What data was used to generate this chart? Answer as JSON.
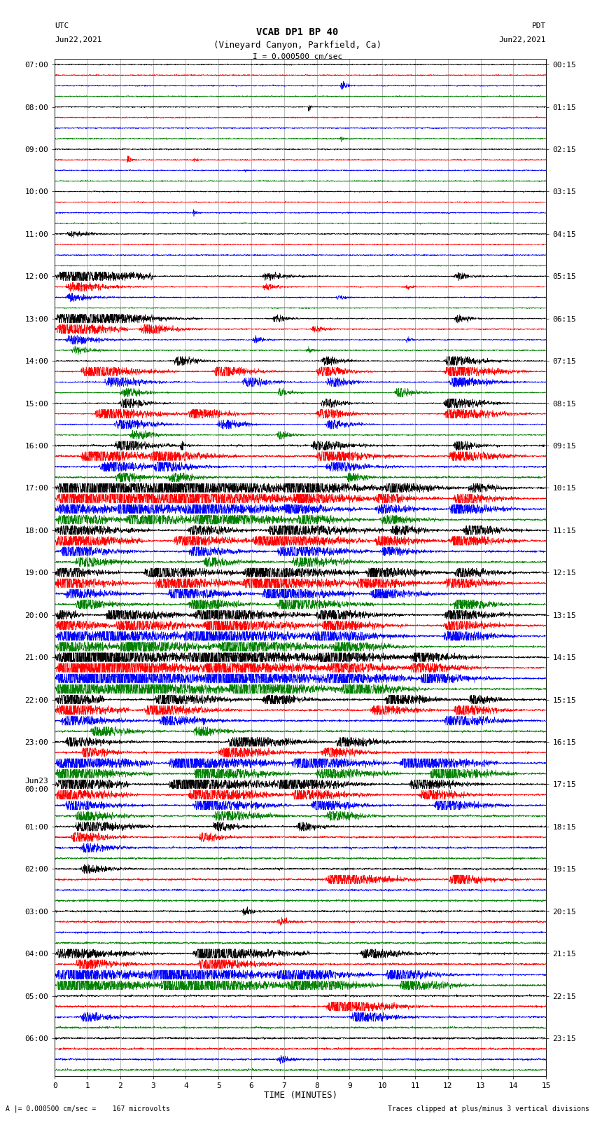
{
  "title_line1": "VCAB DP1 BP 40",
  "title_line2": "(Vineyard Canyon, Parkfield, Ca)",
  "scale_label": "I = 0.000500 cm/sec",
  "left_header": "UTC",
  "left_date": "Jun22,2021",
  "right_header": "PDT",
  "right_date": "Jun22,2021",
  "xlabel": "TIME (MINUTES)",
  "bottom_left": "A |= 0.000500 cm/sec =    167 microvolts",
  "bottom_right": "Traces clipped at plus/minus 3 vertical divisions",
  "xmin": 0,
  "xmax": 15,
  "xticks": [
    0,
    1,
    2,
    3,
    4,
    5,
    6,
    7,
    8,
    9,
    10,
    11,
    12,
    13,
    14,
    15
  ],
  "trace_colors_cycle": [
    "black",
    "red",
    "blue",
    "green"
  ],
  "bg_color": "#ffffff",
  "n_rows": 96,
  "left_times": [
    "07:00",
    "",
    "",
    "",
    "08:00",
    "",
    "",
    "",
    "09:00",
    "",
    "",
    "",
    "10:00",
    "",
    "",
    "",
    "11:00",
    "",
    "",
    "",
    "12:00",
    "",
    "",
    "",
    "13:00",
    "",
    "",
    "",
    "14:00",
    "",
    "",
    "",
    "15:00",
    "",
    "",
    "",
    "16:00",
    "",
    "",
    "",
    "17:00",
    "",
    "",
    "",
    "18:00",
    "",
    "",
    "",
    "19:00",
    "",
    "",
    "",
    "20:00",
    "",
    "",
    "",
    "21:00",
    "",
    "",
    "",
    "22:00",
    "",
    "",
    "",
    "23:00",
    "",
    "",
    "",
    "Jun23\n00:00",
    "",
    "",
    "",
    "01:00",
    "",
    "",
    "",
    "02:00",
    "",
    "",
    "",
    "03:00",
    "",
    "",
    "",
    "04:00",
    "",
    "",
    "",
    "05:00",
    "",
    "",
    "",
    "06:00",
    "",
    "",
    ""
  ],
  "right_times": [
    "00:15",
    "",
    "",
    "",
    "01:15",
    "",
    "",
    "",
    "02:15",
    "",
    "",
    "",
    "03:15",
    "",
    "",
    "",
    "04:15",
    "",
    "",
    "",
    "05:15",
    "",
    "",
    "",
    "06:15",
    "",
    "",
    "",
    "07:15",
    "",
    "",
    "",
    "08:15",
    "",
    "",
    "",
    "09:15",
    "",
    "",
    "",
    "10:15",
    "",
    "",
    "",
    "11:15",
    "",
    "",
    "",
    "12:15",
    "",
    "",
    "",
    "13:15",
    "",
    "",
    "",
    "14:15",
    "",
    "",
    "",
    "15:15",
    "",
    "",
    "",
    "16:15",
    "",
    "",
    "",
    "17:15",
    "",
    "",
    "",
    "18:15",
    "",
    "",
    "",
    "19:15",
    "",
    "",
    "",
    "20:15",
    "",
    "",
    "",
    "21:15",
    "",
    "",
    "",
    "22:15",
    "",
    "",
    "",
    "23:15",
    "",
    "",
    ""
  ]
}
